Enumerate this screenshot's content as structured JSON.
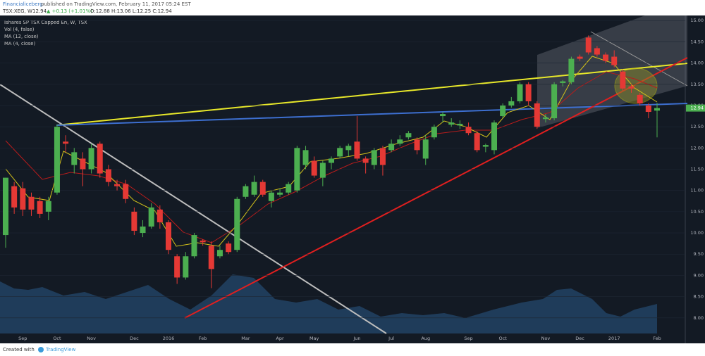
{
  "header": {
    "author": "Financialiceberg",
    "published": "published on TradingView.com, February 11, 2017 05:24 EST",
    "symbol": "TSX:XEG, W",
    "price": "12.94",
    "change": "▲ +0.13 (+1.01%)",
    "ohlc": "O:12.88 H:13.06 L:12.25 C:12.94"
  },
  "footer": {
    "created": "Created with",
    "brand": "TradingView"
  },
  "chart_data": {
    "type": "candlestick",
    "title": "Ishares SP TSX Capped En, W, TSX",
    "indicators": [
      "Vol (4, false)",
      "MA (12, close)",
      "MA (4, close)"
    ],
    "categories": [
      null,
      null,
      "Sep",
      null,
      null,
      null,
      "Oct",
      null,
      null,
      null,
      "Nov",
      null,
      null,
      null,
      null,
      "Dec",
      null,
      null,
      null,
      "2016",
      null,
      null,
      null,
      "Feb",
      null,
      null,
      null,
      null,
      "Mar",
      null,
      null,
      null,
      "Apr",
      null,
      null,
      null,
      "May",
      null,
      null,
      null,
      null,
      "Jun",
      null,
      null,
      null,
      "Jul",
      null,
      null,
      null,
      "Aug",
      null,
      null,
      null,
      null,
      "Sep",
      null,
      null,
      null,
      "Oct",
      null,
      null,
      null,
      null,
      "Nov",
      null,
      null,
      null,
      "Dec",
      null,
      null,
      null,
      "2017",
      null,
      null,
      null,
      null,
      "Feb"
    ],
    "open": [
      9.95,
      11.1,
      11.05,
      10.85,
      10.75,
      10.5,
      10.95,
      12.15,
      11.6,
      11.75,
      11.5,
      12.1,
      11.5,
      11.15,
      11.15,
      10.5,
      10.0,
      10.15,
      10.55,
      10.25,
      9.45,
      8.95,
      9.45,
      9.82,
      9.7,
      9.45,
      9.75,
      9.6,
      10.85,
      10.9,
      11.2,
      10.75,
      10.9,
      10.95,
      11.0,
      11.6,
      11.7,
      11.3,
      11.65,
      11.8,
      11.95,
      12.15,
      11.75,
      11.6,
      12.0,
      11.95,
      12.1,
      12.25,
      12.2,
      11.75,
      12.25,
      12.75,
      12.55,
      12.53,
      12.5,
      12.35,
      12.03,
      11.95,
      12.75,
      13.0,
      13.1,
      13.5,
      13.05,
      12.68,
      12.7,
      13.53,
      13.55,
      14.15,
      14.6,
      14.35,
      14.2,
      14.15,
      13.8,
      13.45,
      13.25,
      13.0,
      12.88
    ],
    "high": [
      11.3,
      11.2,
      11.2,
      10.95,
      10.85,
      10.85,
      12.55,
      12.3,
      12.0,
      11.9,
      12.1,
      12.15,
      11.6,
      11.25,
      11.25,
      10.6,
      10.3,
      10.7,
      10.65,
      10.3,
      9.5,
      9.55,
      10.0,
      9.85,
      9.8,
      9.7,
      9.8,
      10.85,
      11.15,
      11.35,
      11.25,
      11.0,
      11.05,
      11.2,
      12.05,
      12.05,
      11.8,
      11.7,
      11.8,
      12.05,
      12.1,
      12.75,
      11.8,
      12.0,
      12.05,
      12.2,
      12.3,
      12.4,
      12.25,
      12.3,
      12.55,
      12.85,
      12.7,
      12.65,
      12.6,
      12.4,
      12.1,
      12.65,
      13.05,
      13.2,
      13.55,
      13.55,
      13.1,
      12.8,
      13.55,
      13.6,
      14.15,
      14.2,
      14.65,
      14.4,
      14.25,
      14.3,
      13.85,
      13.5,
      13.3,
      13.05,
      13.06
    ],
    "low": [
      9.65,
      10.45,
      10.4,
      10.4,
      10.35,
      10.3,
      10.9,
      11.9,
      11.4,
      11.1,
      11.4,
      11.3,
      11.1,
      11.0,
      10.7,
      9.95,
      9.9,
      10.1,
      10.1,
      9.5,
      8.8,
      8.9,
      9.4,
      9.7,
      8.7,
      9.4,
      9.5,
      9.55,
      10.8,
      10.85,
      10.85,
      10.6,
      10.85,
      10.9,
      10.95,
      11.5,
      11.3,
      11.1,
      11.5,
      11.75,
      11.8,
      11.7,
      11.4,
      11.5,
      11.35,
      11.9,
      12.05,
      12.2,
      11.85,
      11.6,
      12.2,
      12.6,
      12.5,
      12.45,
      12.3,
      11.9,
      11.9,
      11.85,
      12.7,
      12.95,
      13.05,
      13.0,
      12.45,
      12.6,
      12.65,
      13.45,
      13.5,
      14.05,
      14.2,
      14.15,
      14.0,
      13.9,
      13.35,
      13.3,
      13.0,
      12.7,
      12.25
    ],
    "close": [
      11.3,
      10.6,
      10.55,
      10.55,
      10.45,
      10.75,
      12.5,
      12.1,
      11.9,
      11.5,
      12.0,
      11.4,
      11.2,
      11.1,
      10.8,
      10.05,
      10.15,
      10.6,
      10.25,
      9.6,
      8.95,
      9.45,
      9.95,
      9.78,
      9.15,
      9.6,
      9.55,
      10.8,
      11.1,
      11.2,
      10.9,
      10.95,
      10.95,
      11.15,
      12.0,
      11.95,
      11.35,
      11.65,
      11.75,
      12.0,
      12.05,
      11.75,
      11.65,
      11.95,
      11.6,
      12.1,
      12.2,
      12.35,
      11.95,
      12.2,
      12.5,
      12.8,
      12.6,
      12.57,
      12.35,
      11.95,
      12.07,
      12.6,
      13.0,
      13.1,
      13.5,
      13.1,
      12.5,
      12.72,
      13.5,
      13.57,
      14.1,
      14.1,
      14.25,
      14.2,
      14.05,
      13.95,
      13.4,
      13.4,
      13.05,
      12.85,
      12.94
    ],
    "up_color": "#4caf50",
    "down_color": "#e53935",
    "last_price": 12.94,
    "ylim": [
      7.4,
      15.12
    ],
    "yticks": [
      {
        "value": 8,
        "label": "8.00"
      },
      {
        "value": 8.5,
        "label": "8.50"
      },
      {
        "value": 9,
        "label": "9.00"
      },
      {
        "value": 9.5,
        "label": "9.50"
      },
      {
        "value": 10,
        "label": "10.00"
      },
      {
        "value": 10.5,
        "label": "10.50"
      },
      {
        "value": 11,
        "label": "11.00"
      },
      {
        "value": 11.5,
        "label": "11.50"
      },
      {
        "value": 12,
        "label": "12.00"
      },
      {
        "value": 12.5,
        "label": "12.50"
      },
      {
        "value": 13,
        "label": "13.00"
      },
      {
        "value": 13.5,
        "label": "13.50"
      },
      {
        "value": 14,
        "label": "14.00"
      },
      {
        "value": 14.5,
        "label": "14.50"
      },
      {
        "value": 15,
        "label": "15.00"
      }
    ]
  }
}
